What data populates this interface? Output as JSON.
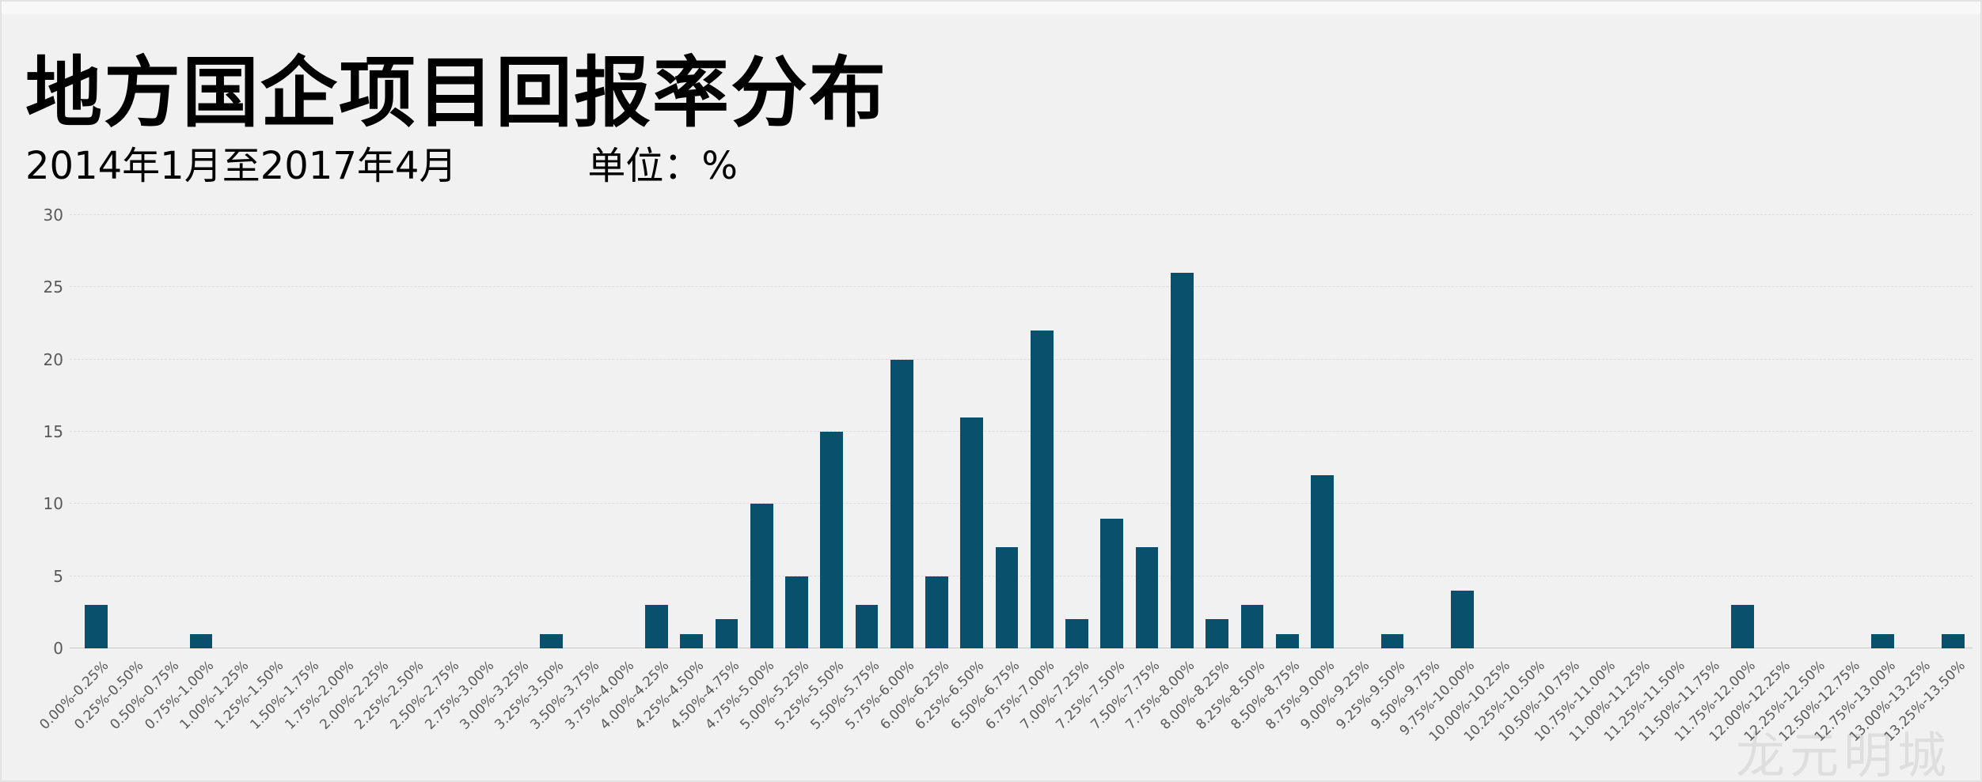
{
  "header": {
    "title": "地方国企项目回报率分布",
    "period": "2014年1月至2017年4月",
    "unit_label": "单位：%"
  },
  "watermark": {
    "text": "龙元明城"
  },
  "colors": {
    "background": "#f1f1f1",
    "bar": "#08506b",
    "axis_text": "#595959",
    "gridline": "#dcdcdc",
    "baseline": "#c9c9c9",
    "watermark": "#dedede"
  },
  "chart_data": {
    "type": "bar",
    "title": "地方国企项目回报率分布",
    "subtitle": "2014年1月至2017年4月",
    "unit": "%",
    "xlabel": "",
    "ylabel": "",
    "ylim": [
      0,
      30
    ],
    "yticks": [
      0,
      5,
      10,
      15,
      20,
      25,
      30
    ],
    "grid": true,
    "legend": "none",
    "categories": [
      "0.00%-0.25%",
      "0.25%-0.50%",
      "0.50%-0.75%",
      "0.75%-1.00%",
      "1.00%-1.25%",
      "1.25%-1.50%",
      "1.50%-1.75%",
      "1.75%-2.00%",
      "2.00%-2.25%",
      "2.25%-2.50%",
      "2.50%-2.75%",
      "2.75%-3.00%",
      "3.00%-3.25%",
      "3.25%-3.50%",
      "3.50%-3.75%",
      "3.75%-4.00%",
      "4.00%-4.25%",
      "4.25%-4.50%",
      "4.50%-4.75%",
      "4.75%-5.00%",
      "5.00%-5.25%",
      "5.25%-5.50%",
      "5.50%-5.75%",
      "5.75%-6.00%",
      "6.00%-6.25%",
      "6.25%-6.50%",
      "6.50%-6.75%",
      "6.75%-7.00%",
      "7.00%-7.25%",
      "7.25%-7.50%",
      "7.50%-7.75%",
      "7.75%-8.00%",
      "8.00%-8.25%",
      "8.25%-8.50%",
      "8.50%-8.75%",
      "8.75%-9.00%",
      "9.00%-9.25%",
      "9.25%-9.50%",
      "9.50%-9.75%",
      "9.75%-10.00%",
      "10.00%-10.25%",
      "10.25%-10.50%",
      "10.50%-10.75%",
      "10.75%-11.00%",
      "11.00%-11.25%",
      "11.25%-11.50%",
      "11.50%-11.75%",
      "11.75%-12.00%",
      "12.00%-12.25%",
      "12.25%-12.50%",
      "12.50%-12.75%",
      "12.75%-13.00%",
      "13.00%-13.25%",
      "13.25%-13.50%"
    ],
    "values": [
      3,
      0,
      0,
      1,
      0,
      0,
      0,
      0,
      0,
      0,
      0,
      0,
      0,
      1,
      0,
      0,
      3,
      1,
      2,
      10,
      5,
      15,
      3,
      20,
      5,
      16,
      7,
      22,
      2,
      9,
      7,
      26,
      2,
      3,
      1,
      12,
      0,
      1,
      0,
      4,
      0,
      0,
      0,
      0,
      0,
      0,
      0,
      3,
      0,
      0,
      0,
      1,
      0,
      1
    ]
  }
}
